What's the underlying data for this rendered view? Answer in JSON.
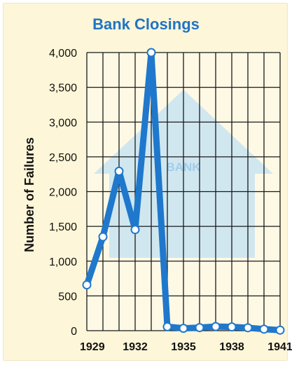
{
  "chart_data": {
    "type": "line",
    "title": "Bank Closings",
    "xlabel": "",
    "ylabel": "Number of Failures",
    "x": [
      1929,
      1930,
      1931,
      1932,
      1933,
      1934,
      1935,
      1936,
      1937,
      1938,
      1939,
      1940,
      1941
    ],
    "x_tick_labels": [
      "1929",
      "1932",
      "1935",
      "1938",
      "1941"
    ],
    "x_tick_values": [
      1929,
      1932,
      1935,
      1938,
      1941
    ],
    "y_ticks": [
      0,
      500,
      1000,
      1500,
      2000,
      2500,
      3000,
      3500,
      4000
    ],
    "y_tick_labels": [
      "0",
      "500",
      "1,000",
      "1,500",
      "2,000",
      "2,500",
      "3,000",
      "3,500",
      "4,000"
    ],
    "ylim": [
      0,
      4000
    ],
    "xlim": [
      1929,
      1941
    ],
    "grid": true,
    "series": [
      {
        "values": [
          659,
          1350,
          2293,
          1453,
          4000,
          57,
          34,
          44,
          59,
          54,
          42,
          22,
          8
        ]
      }
    ],
    "background_illustration": {
      "label": "BANK"
    },
    "colors": {
      "line": "#1f78cc",
      "marker_fill": "#ffffff",
      "title": "#1f74c6",
      "plot_bg": "#ffffff",
      "grid": "#1a1a1a",
      "frame_bg": "#fdf6d8",
      "bank_illustration": "#9fd0ee"
    }
  }
}
